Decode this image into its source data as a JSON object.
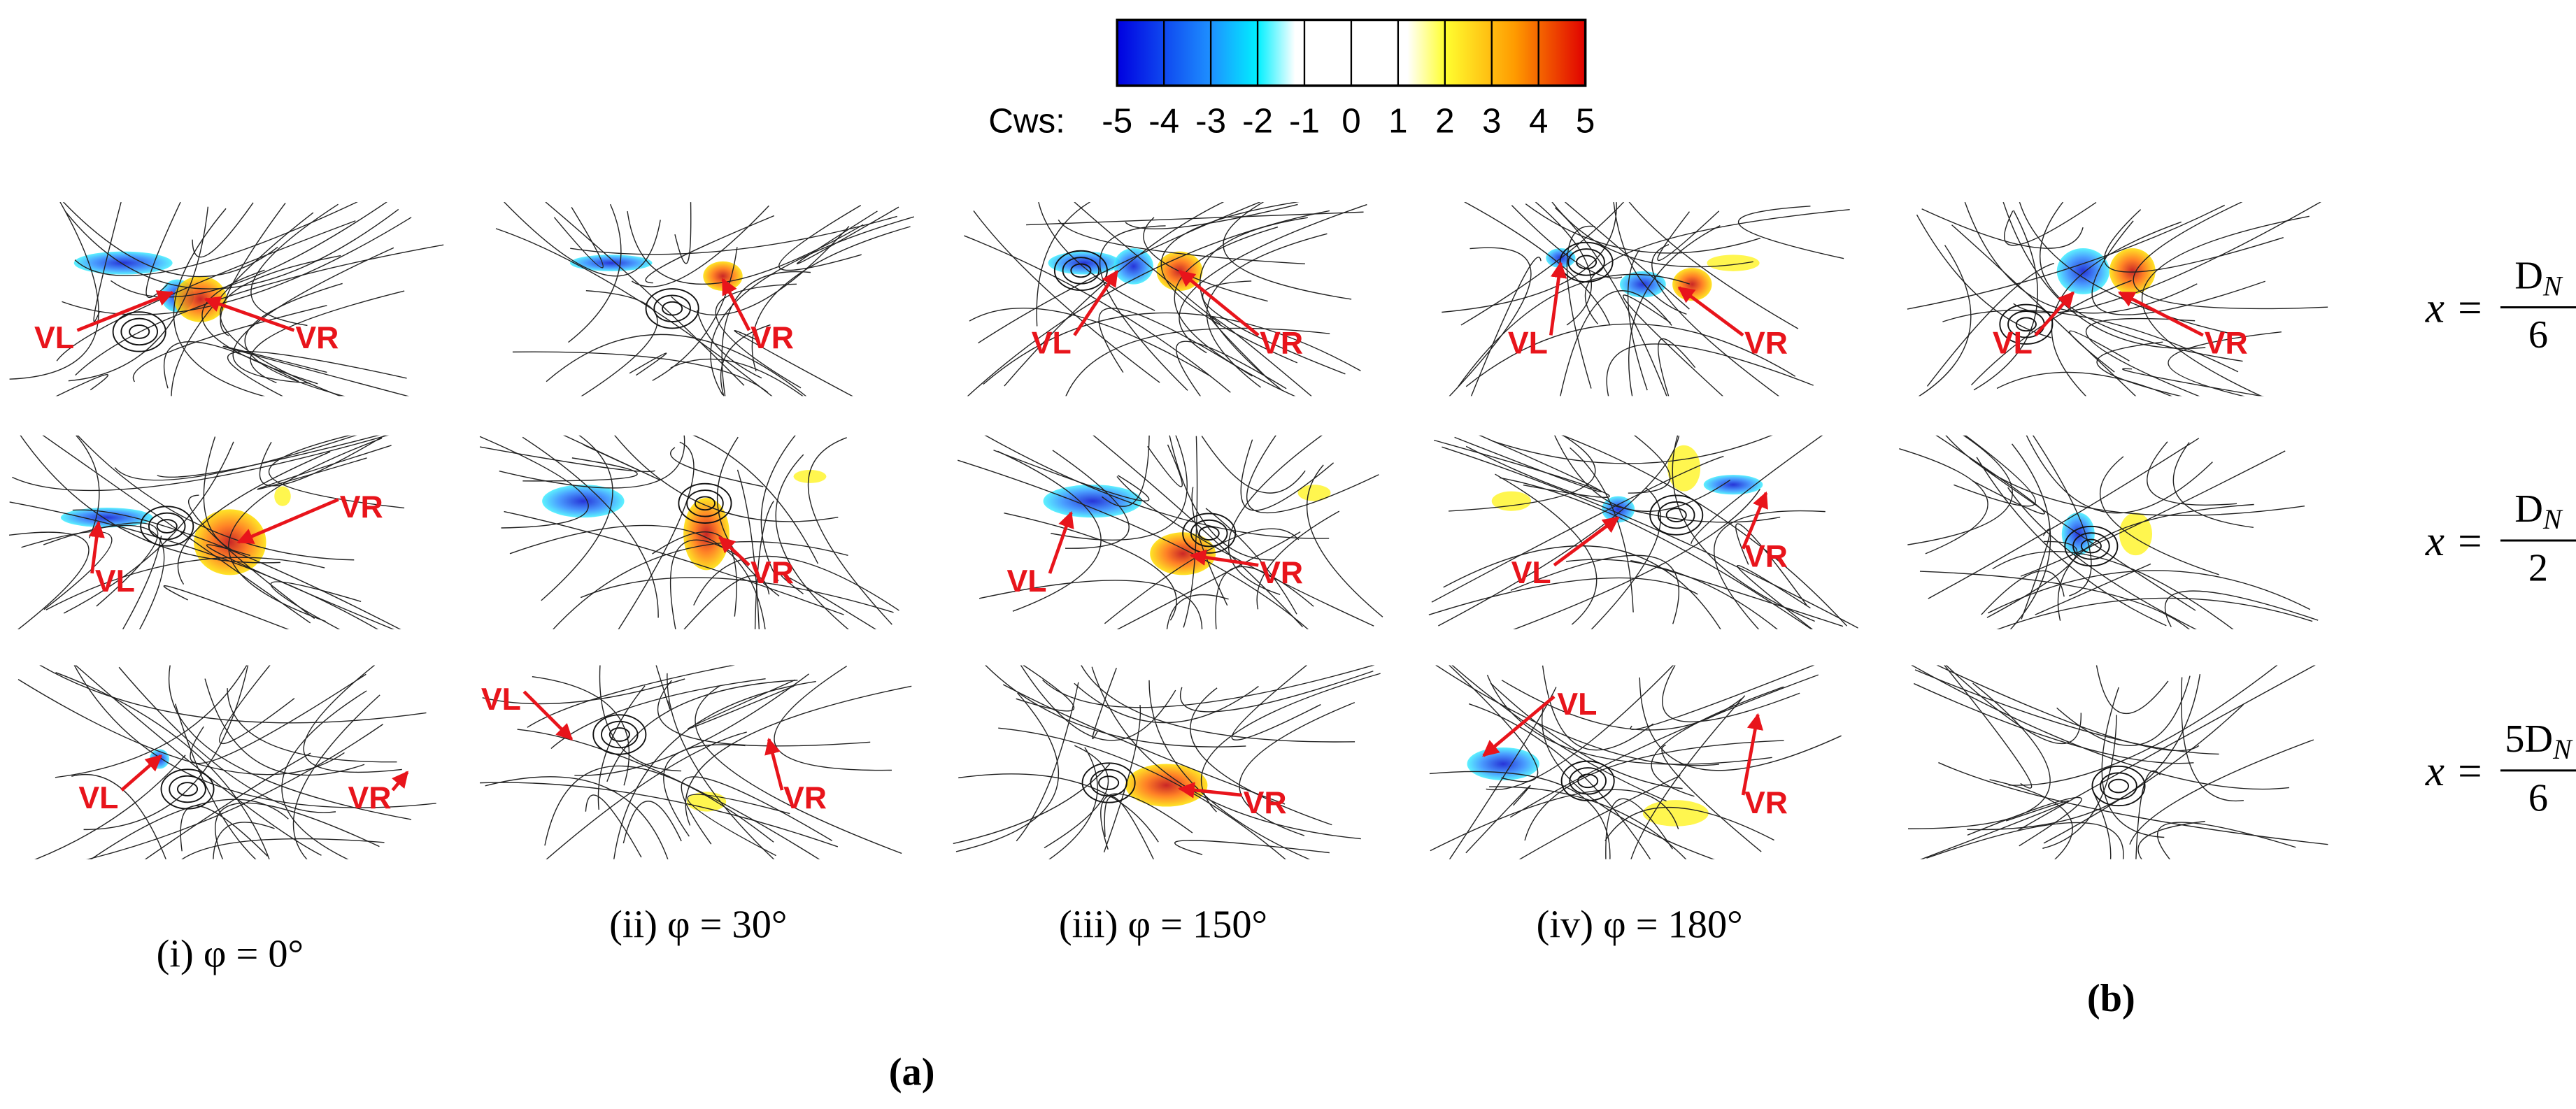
{
  "colorbar": {
    "label": "Cws:",
    "ticks": [
      -5,
      -4,
      -3,
      -2,
      -1,
      0,
      1,
      2,
      3,
      4,
      5
    ]
  },
  "columns": [
    "(i) φ = 0°",
    "(ii) φ = 30°",
    "(iii) φ = 150°",
    "(iv) φ = 180°"
  ],
  "rows": [
    {
      "lhs": "x =",
      "num": "D",
      "sub": "N",
      "den": "6",
      "panels": [
        [
          "VL",
          "VR"
        ],
        [
          "VR"
        ],
        [
          "VL",
          "VR"
        ],
        [
          "VL",
          "VR"
        ],
        [
          "VL",
          "VR"
        ]
      ]
    },
    {
      "lhs": "x =",
      "num": "D",
      "sub": "N",
      "den": "2",
      "panels": [
        [
          "VL",
          "VR"
        ],
        [
          "VR"
        ],
        [
          "VL",
          "VR"
        ],
        [
          "VL",
          "VR"
        ],
        []
      ]
    },
    {
      "lhs": "x =",
      "num": "5D",
      "sub": "N",
      "den": "6",
      "panels": [
        [
          "VL",
          "VR"
        ],
        [
          "VL",
          "VR"
        ],
        [
          "VR"
        ],
        [
          "VL",
          "VR"
        ],
        []
      ]
    }
  ],
  "figure_labels": {
    "a": "(a)",
    "b": "(b)"
  }
}
